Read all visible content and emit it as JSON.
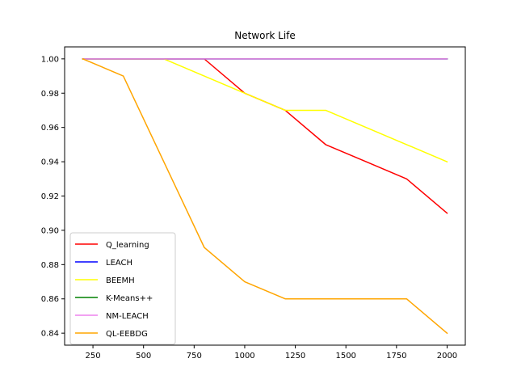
{
  "chart_data": {
    "type": "line",
    "title": "Network Life",
    "xlabel": "",
    "ylabel": "",
    "xlim": [
      110,
      2090
    ],
    "ylim": [
      0.833,
      1.007
    ],
    "xticks": [
      250,
      500,
      750,
      1000,
      1250,
      1500,
      1750,
      2000
    ],
    "yticks": [
      0.84,
      0.86,
      0.88,
      0.9,
      0.92,
      0.94,
      0.96,
      0.98,
      1.0
    ],
    "xtick_labels": [
      "250",
      "500",
      "750",
      "1000",
      "1250",
      "1500",
      "1750",
      "2000"
    ],
    "ytick_labels": [
      "0.84",
      "0.86",
      "0.88",
      "0.90",
      "0.92",
      "0.94",
      "0.96",
      "0.98",
      "1.00"
    ],
    "grid": false,
    "legend_position": "lower-left",
    "series": [
      {
        "name": "Q_learning",
        "color": "#ff0000",
        "x": [
          200,
          400,
          600,
          800,
          1000,
          1200,
          1400,
          1600,
          1800,
          2000
        ],
        "y": [
          1.0,
          1.0,
          1.0,
          1.0,
          0.98,
          0.97,
          0.95,
          0.94,
          0.93,
          0.91
        ]
      },
      {
        "name": "LEACH",
        "color": "#0000ff",
        "x": [
          200,
          400,
          600,
          800,
          1000,
          1200,
          1400,
          1600,
          1800,
          2000
        ],
        "y": [
          1.0,
          1.0,
          1.0,
          1.0,
          1.0,
          1.0,
          1.0,
          1.0,
          1.0,
          1.0
        ]
      },
      {
        "name": "BEEMH",
        "color": "#ffff00",
        "x": [
          200,
          400,
          600,
          800,
          1000,
          1200,
          1400,
          1600,
          1800,
          2000
        ],
        "y": [
          1.0,
          1.0,
          1.0,
          0.99,
          0.98,
          0.97,
          0.97,
          0.96,
          0.95,
          0.94
        ]
      },
      {
        "name": "K-Means++",
        "color": "#008000",
        "x": [
          200,
          400,
          600,
          800,
          1000,
          1200,
          1400,
          1600,
          1800,
          2000
        ],
        "y": [
          1.0,
          1.0,
          1.0,
          1.0,
          1.0,
          1.0,
          1.0,
          1.0,
          1.0,
          1.0
        ]
      },
      {
        "name": "NM-LEACH",
        "color": "#ee82ee",
        "x": [
          200,
          400,
          600,
          800,
          1000,
          1200,
          1400,
          1600,
          1800,
          2000
        ],
        "y": [
          1.0,
          1.0,
          1.0,
          1.0,
          1.0,
          1.0,
          1.0,
          1.0,
          1.0,
          1.0
        ]
      },
      {
        "name": "QL-EEBDG",
        "color": "#ffa500",
        "x": [
          200,
          400,
          600,
          800,
          1000,
          1200,
          1400,
          1600,
          1800,
          2000
        ],
        "y": [
          1.0,
          0.99,
          0.94,
          0.89,
          0.87,
          0.86,
          0.86,
          0.86,
          0.86,
          0.84
        ]
      }
    ]
  }
}
